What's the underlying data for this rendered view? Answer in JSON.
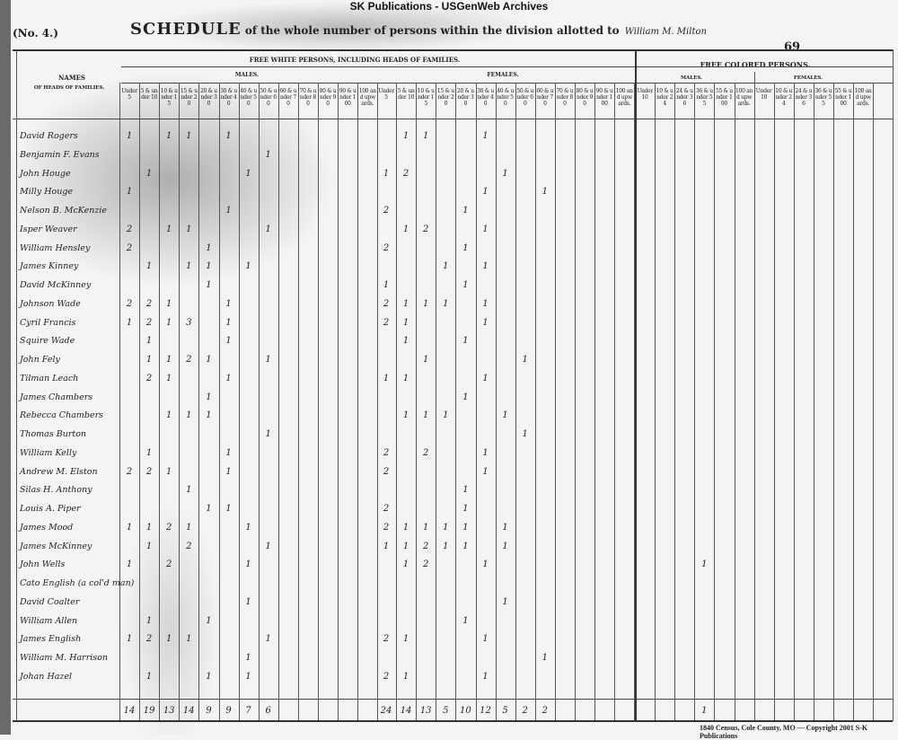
{
  "banner": "SK Publications - USGenWeb Archives",
  "schedule_no": "(No. 4.)",
  "title": {
    "lead": "SCHEDULE",
    "rest": "of the whole number of persons within the division allotted to",
    "enumerator": "William M. Milton"
  },
  "page_number": "69",
  "headers": {
    "names": "NAMES",
    "names_sub": "OF HEADS OF FAMILIES.",
    "free_white": "FREE WHITE PERSONS, INCLUDING HEADS OF FAMILIES.",
    "males": "MALES.",
    "females": "FEMALES.",
    "free_colored": "FREE COLORED PERSONS.",
    "colored_males": "MALES.",
    "colored_females": "FEMALES.",
    "white_age_columns": [
      "Under 5",
      "5 & under 10",
      "10 & under 15",
      "15 & under 20",
      "20 & under 30",
      "30 & under 40",
      "40 & under 50",
      "50 & under 60",
      "60 & under 70",
      "70 & under 80",
      "80 & under 90",
      "90 & under 100",
      "100 and upwards."
    ],
    "colored_age_columns": [
      "Under 10",
      "10 & under 24",
      "24 & under 36",
      "36 & under 55",
      "55 & under 100",
      "100 and upwards."
    ]
  },
  "rows": [
    {
      "name": "David Rogers",
      "m": [
        1,
        null,
        1,
        1,
        null,
        1
      ],
      "f": [
        null,
        1,
        1,
        null,
        null,
        1
      ]
    },
    {
      "name": "Benjamin F. Evans",
      "m": [
        null,
        null,
        null,
        null,
        null,
        null,
        null,
        1
      ],
      "f": []
    },
    {
      "name": "John Houge",
      "m": [
        null,
        1,
        null,
        null,
        null,
        null,
        1
      ],
      "f": [
        1,
        2,
        null,
        null,
        null,
        null,
        1
      ]
    },
    {
      "name": "Milly Houge",
      "m": [
        1
      ],
      "f": [
        null,
        null,
        null,
        null,
        null,
        1,
        null,
        null,
        1
      ]
    },
    {
      "name": "Nelson B. McKenzie",
      "m": [
        null,
        null,
        null,
        null,
        null,
        1
      ],
      "f": [
        2,
        null,
        null,
        null,
        1
      ]
    },
    {
      "name": "Isper Weaver",
      "m": [
        2,
        null,
        1,
        1,
        null,
        null,
        null,
        1
      ],
      "f": [
        null,
        1,
        2,
        null,
        null,
        1
      ]
    },
    {
      "name": "William Hensley",
      "m": [
        2,
        null,
        null,
        null,
        1
      ],
      "f": [
        2,
        null,
        null,
        null,
        1
      ]
    },
    {
      "name": "James Kinney",
      "m": [
        null,
        1,
        null,
        1,
        1,
        null,
        1
      ],
      "f": [
        null,
        null,
        null,
        1,
        null,
        1
      ]
    },
    {
      "name": "David McKinney",
      "m": [
        null,
        null,
        null,
        null,
        1
      ],
      "f": [
        1,
        null,
        null,
        null,
        1
      ]
    },
    {
      "name": "Johnson Wade",
      "m": [
        2,
        2,
        1,
        null,
        null,
        1
      ],
      "f": [
        2,
        1,
        1,
        1,
        null,
        1
      ]
    },
    {
      "name": "Cyril Francis",
      "m": [
        1,
        2,
        1,
        3,
        null,
        1
      ],
      "f": [
        2,
        1,
        null,
        null,
        null,
        1
      ]
    },
    {
      "name": "Squire Wade",
      "m": [
        null,
        1,
        null,
        null,
        null,
        1
      ],
      "f": [
        null,
        1,
        null,
        null,
        1
      ]
    },
    {
      "name": "John Fely",
      "m": [
        null,
        1,
        1,
        2,
        1,
        null,
        null,
        1
      ],
      "f": [
        null,
        null,
        1,
        null,
        null,
        null,
        null,
        1
      ]
    },
    {
      "name": "Tilman Leach",
      "m": [
        null,
        2,
        1,
        null,
        null,
        1
      ],
      "f": [
        1,
        1,
        null,
        null,
        null,
        1
      ]
    },
    {
      "name": "James Chambers",
      "m": [
        null,
        null,
        null,
        null,
        1
      ],
      "f": [
        null,
        null,
        null,
        null,
        1
      ]
    },
    {
      "name": "Rebecca Chambers",
      "m": [
        null,
        null,
        1,
        1,
        1
      ],
      "f": [
        null,
        1,
        1,
        1,
        null,
        null,
        1
      ]
    },
    {
      "name": "Thomas Burton",
      "m": [
        null,
        null,
        null,
        null,
        null,
        null,
        null,
        1
      ],
      "f": [
        null,
        null,
        null,
        null,
        null,
        null,
        null,
        1
      ]
    },
    {
      "name": "William Kelly",
      "m": [
        null,
        1,
        null,
        null,
        null,
        1
      ],
      "f": [
        2,
        null,
        2,
        null,
        null,
        1
      ]
    },
    {
      "name": "Andrew M. Elston",
      "m": [
        2,
        2,
        1,
        null,
        null,
        1
      ],
      "f": [
        2,
        null,
        null,
        null,
        null,
        1
      ]
    },
    {
      "name": "Silas H. Anthony",
      "m": [
        null,
        null,
        null,
        1
      ],
      "f": [
        null,
        null,
        null,
        null,
        1
      ]
    },
    {
      "name": "Louis A. Piper",
      "m": [
        null,
        null,
        null,
        null,
        1,
        1
      ],
      "f": [
        2,
        null,
        null,
        null,
        1
      ]
    },
    {
      "name": "James Mood",
      "m": [
        1,
        1,
        2,
        1,
        null,
        null,
        1
      ],
      "f": [
        2,
        1,
        1,
        1,
        1,
        null,
        1
      ]
    },
    {
      "name": "James McKinney",
      "m": [
        null,
        1,
        null,
        2,
        null,
        null,
        null,
        1
      ],
      "f": [
        1,
        1,
        2,
        1,
        1,
        null,
        1
      ]
    },
    {
      "name": "John Wells",
      "m": [
        1,
        null,
        2,
        null,
        null,
        null,
        1
      ],
      "f": [
        null,
        1,
        2,
        null,
        null,
        1
      ],
      "cm": [
        null,
        null,
        null,
        1
      ]
    },
    {
      "name": "Cato English (a col'd man)",
      "m": [],
      "f": []
    },
    {
      "name": "David Coalter",
      "m": [
        null,
        null,
        null,
        null,
        null,
        null,
        1
      ],
      "f": [
        null,
        null,
        null,
        null,
        null,
        null,
        1
      ]
    },
    {
      "name": "William Allen",
      "m": [
        null,
        1,
        null,
        null,
        1
      ],
      "f": [
        null,
        null,
        null,
        null,
        1
      ]
    },
    {
      "name": "James English",
      "m": [
        1,
        2,
        1,
        1,
        null,
        null,
        null,
        1
      ],
      "f": [
        2,
        1,
        null,
        null,
        null,
        1
      ]
    },
    {
      "name": "William M. Harrison",
      "m": [
        null,
        null,
        null,
        null,
        null,
        null,
        1
      ],
      "f": [
        null,
        null,
        null,
        null,
        null,
        null,
        null,
        null,
        1
      ]
    },
    {
      "name": "Johan Hazel",
      "m": [
        null,
        1,
        null,
        null,
        1,
        null,
        1
      ],
      "f": [
        2,
        1,
        null,
        null,
        null,
        1
      ]
    }
  ],
  "totals": {
    "m": [
      14,
      19,
      13,
      14,
      9,
      9,
      7,
      6
    ],
    "f": [
      24,
      14,
      13,
      5,
      10,
      12,
      5,
      2,
      2
    ],
    "cm": [
      null,
      null,
      null,
      1
    ]
  },
  "footer": "1840 Census, Cole County, MO — Copyright 2001 S-K Publications"
}
